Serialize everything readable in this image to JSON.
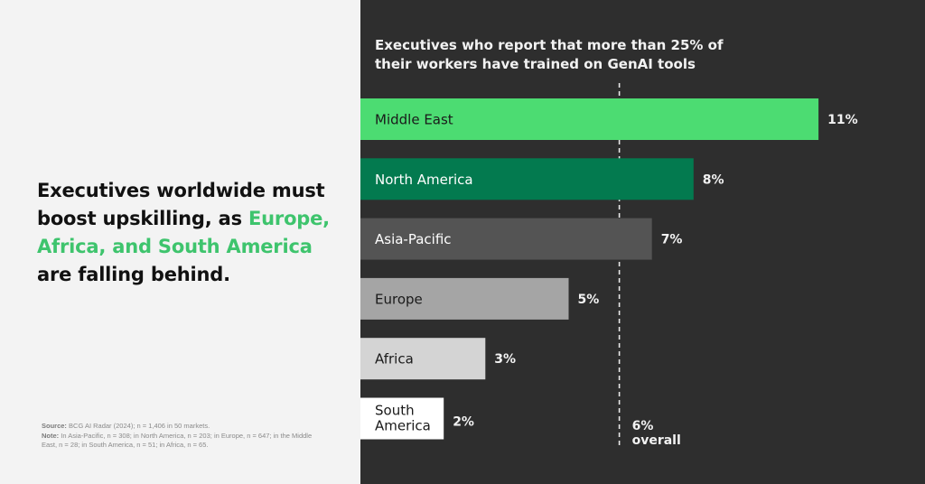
{
  "headline": {
    "part1": "Executives worldwide must boost upskilling, as ",
    "highlight": "Europe, Africa, and South America",
    "part2": " are falling behind."
  },
  "notes": {
    "source_label": "Source:",
    "source_text": "BCG AI Radar (2024); n = 1,406 in 50 markets.",
    "note_label": "Note:",
    "note_text": "In Asia-Pacific, n = 308; in North America, n = 203; in Europe, n = 647; in the Middle East, n = 28; in South America, n = 51; in Africa, n = 65."
  },
  "chart_data": {
    "type": "bar",
    "orientation": "horizontal",
    "title": "Executives who report that more than 25% of their workers have trained on GenAI tools",
    "categories": [
      "Middle East",
      "North America",
      "Asia-Pacific",
      "Europe",
      "Africa",
      "South America"
    ],
    "values": [
      11,
      8,
      7,
      5,
      3,
      2
    ],
    "value_labels": [
      "11%",
      "8%",
      "7%",
      "5%",
      "3%",
      "2%"
    ],
    "unit": "%",
    "bar_colors": [
      "#4cdc72",
      "#037a4f",
      "#545454",
      "#a5a5a5",
      "#d4d4d4",
      "#ffffff"
    ],
    "label_colors": [
      "#1a1a1a",
      "#ffffff",
      "#ffffff",
      "#1a1a1a",
      "#1a1a1a",
      "#1a1a1a"
    ],
    "reference_line": {
      "value": 6,
      "label_value": "6%",
      "label_text": "overall"
    },
    "xlim": [
      0,
      11
    ]
  },
  "colors": {
    "accent_green": "#3ec46d",
    "dark_background": "#2e2e2e",
    "light_background": "#f3f3f3"
  }
}
